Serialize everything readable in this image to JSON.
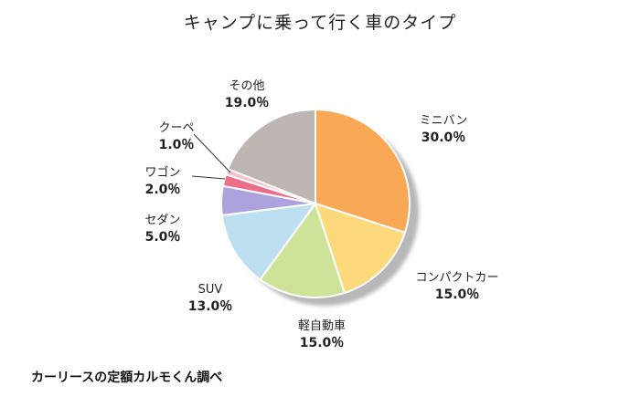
{
  "chart_data": {
    "type": "pie",
    "title": "キャンプに乗って行く車のタイプ",
    "slices": [
      {
        "label": "ミニバン",
        "value": 30.0,
        "pct_text": "30.0％",
        "color": "#f9a955"
      },
      {
        "label": "コンパクトカー",
        "value": 15.0,
        "pct_text": "15.0％",
        "color": "#fcd97a"
      },
      {
        "label": "軽自動車",
        "value": 15.0,
        "pct_text": "15.0％",
        "color": "#cde39a"
      },
      {
        "label": "SUV",
        "value": 13.0,
        "pct_text": "13.0％",
        "color": "#bedff0"
      },
      {
        "label": "セダン",
        "value": 5.0,
        "pct_text": "5.0％",
        "color": "#aca2de"
      },
      {
        "label": "ワゴン",
        "value": 2.0,
        "pct_text": "2.0％",
        "color": "#ec6e88"
      },
      {
        "label": "クーペ",
        "value": 1.0,
        "pct_text": "1.0％",
        "color": "#f6c0cc"
      },
      {
        "label": "その他",
        "value": 19.0,
        "pct_text": "19.0％",
        "color": "#bdb6b3"
      }
    ],
    "start_angle_deg": 0,
    "direction": "clockwise",
    "legend": "none"
  },
  "footer": {
    "source": "カーリースの定額カルモくん調べ"
  }
}
